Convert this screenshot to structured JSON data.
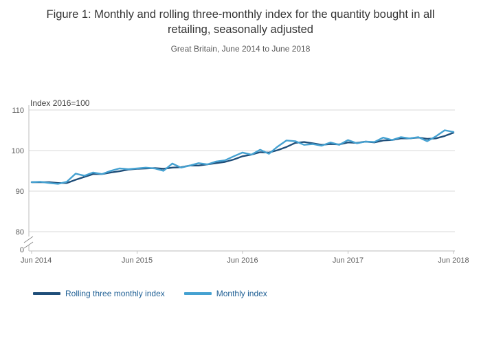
{
  "title": "Figure 1: Monthly and rolling three-monthly index for the quantity bought in all retailing, seasonally adjusted",
  "subtitle": "Great Britain, June 2014 to June 2018",
  "axis_note": "Index 2016=100",
  "colors": {
    "rolling_line": "#1f4e79",
    "monthly_line": "#45a1d1",
    "gridline": "#d9d9d9",
    "axis": "#bdbdbd",
    "tick_text": "#595959"
  },
  "legend": {
    "items": [
      {
        "label": "Rolling three monthly index",
        "color": "#1f4e79"
      },
      {
        "label": "Monthly index",
        "color": "#45a1d1"
      }
    ]
  },
  "chart_data": {
    "type": "line",
    "title": "Monthly and rolling three-monthly index for the quantity bought in all retailing, seasonally adjusted",
    "xlabel": "",
    "ylabel": "Index 2016=100",
    "x_range_note": "Monthly points from Jun 2014 to Jun 2018 (49 points)",
    "x_tick_labels": [
      "Jun 2014",
      "Jun 2015",
      "Jun 2016",
      "Jun 2017",
      "Jun 2018"
    ],
    "x_tick_positions": [
      0,
      12,
      24,
      36,
      48
    ],
    "y_ticks": [
      0,
      80,
      90,
      100,
      110
    ],
    "y_display_min": 80,
    "y_display_max": 110,
    "axis_break": true,
    "grid": true,
    "legend_position": "bottom",
    "series": [
      {
        "name": "Rolling three monthly index",
        "color": "#1f4e79",
        "values": [
          92.2,
          92.2,
          92.2,
          92.0,
          92.0,
          92.8,
          93.5,
          94.2,
          94.2,
          94.6,
          94.9,
          95.3,
          95.5,
          95.6,
          95.7,
          95.5,
          95.8,
          95.9,
          96.3,
          96.3,
          96.6,
          96.9,
          97.2,
          97.8,
          98.6,
          99.0,
          99.6,
          99.5,
          100.1,
          100.9,
          101.9,
          102.1,
          101.8,
          101.4,
          101.6,
          101.5,
          102.0,
          101.9,
          102.2,
          102.0,
          102.5,
          102.6,
          103.0,
          103.0,
          103.2,
          102.9,
          103.0,
          103.6,
          104.4
        ]
      },
      {
        "name": "Monthly index",
        "color": "#45a1d1",
        "values": [
          92.2,
          92.3,
          92.0,
          91.8,
          92.3,
          94.3,
          93.8,
          94.6,
          94.2,
          95.0,
          95.6,
          95.4,
          95.6,
          95.8,
          95.6,
          95.0,
          96.8,
          95.8,
          96.3,
          96.9,
          96.6,
          97.3,
          97.6,
          98.6,
          99.5,
          99.0,
          100.2,
          99.2,
          101.0,
          102.5,
          102.3,
          101.4,
          101.6,
          101.2,
          102.0,
          101.4,
          102.6,
          101.8,
          102.2,
          102.1,
          103.2,
          102.6,
          103.3,
          103.0,
          103.3,
          102.3,
          103.5,
          105.0,
          104.6
        ]
      }
    ]
  }
}
